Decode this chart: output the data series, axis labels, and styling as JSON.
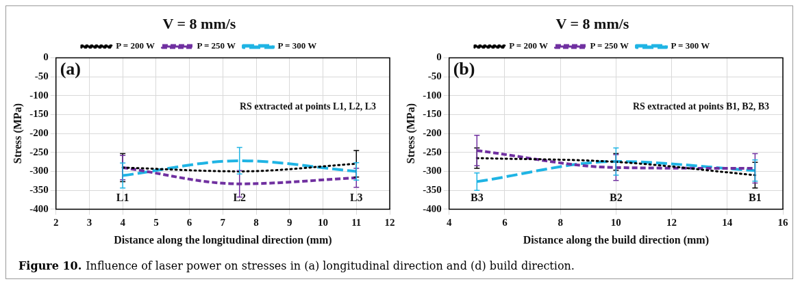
{
  "chart_data": [
    {
      "type": "line",
      "title": "V = 8 mm/s",
      "xlabel": "Distance along the longitudinal direction (mm)",
      "ylabel": "Stress (MPa)",
      "x": [
        4,
        7.5,
        11
      ],
      "xlim": [
        2,
        12
      ],
      "xticks": [
        2,
        3,
        4,
        5,
        6,
        7,
        8,
        9,
        10,
        11,
        12
      ],
      "ylim": [
        -400,
        0
      ],
      "yticks": [
        0,
        -50,
        -100,
        -150,
        -200,
        -250,
        -300,
        -350,
        -400
      ],
      "grid": true,
      "legend": "top",
      "marker": "none",
      "series": [
        {
          "name": "P = 200 W",
          "color": "#000000",
          "line_style": "dotted",
          "values": [
            -290,
            -300,
            -280
          ],
          "errors": [
            37,
            null,
            35
          ]
        },
        {
          "name": "P = 250 W",
          "color": "#7030a0",
          "line_style": "dashed",
          "values": [
            -290,
            -333,
            -317
          ],
          "errors": [
            32,
            35,
            25
          ]
        },
        {
          "name": "P = 300 W",
          "color": "#1fb4e4",
          "line_style": "dashed",
          "values": [
            -311,
            -272,
            -300
          ],
          "errors": [
            33,
            35,
            23
          ]
        }
      ],
      "annotations": [
        "(a)",
        "RS extracted at points L1, L2, L3",
        "L1",
        "L2",
        "L3",
        "Figure 10.",
        "Influence of laser power on stresses in (a) longitudinal direction and (d) build direction."
      ]
    },
    {
      "type": "line",
      "title": "V = 8 mm/s",
      "xlabel": "Distance along the build direction (mm)",
      "ylabel": "Stress (MPa)",
      "x": [
        5,
        10,
        15
      ],
      "xlim": [
        4,
        16
      ],
      "xticks": [
        4,
        6,
        8,
        10,
        12,
        14,
        16
      ],
      "ylim": [
        -400,
        0
      ],
      "yticks": [
        0,
        -50,
        -100,
        -150,
        -200,
        -250,
        -300,
        -350,
        -400
      ],
      "grid": true,
      "legend": "top",
      "marker": "none",
      "series": [
        {
          "name": "P = 200 W",
          "color": "#000000",
          "line_style": "dotted",
          "values": [
            -265,
            -275,
            -310
          ],
          "errors": [
            27,
            22,
            34
          ]
        },
        {
          "name": "P = 250 W",
          "color": "#7030a0",
          "line_style": "dashed",
          "values": [
            -245,
            -290,
            -292
          ],
          "errors": [
            40,
            34,
            39
          ]
        },
        {
          "name": "P = 300 W",
          "color": "#1fb4e4",
          "line_style": "dashed",
          "values": [
            -327,
            -274,
            -298
          ],
          "errors": [
            23,
            36,
            28
          ]
        }
      ],
      "annotations": [
        "(b)",
        "RS extracted at points B1, B2, B3",
        "B3",
        "B2",
        "B1"
      ]
    }
  ]
}
